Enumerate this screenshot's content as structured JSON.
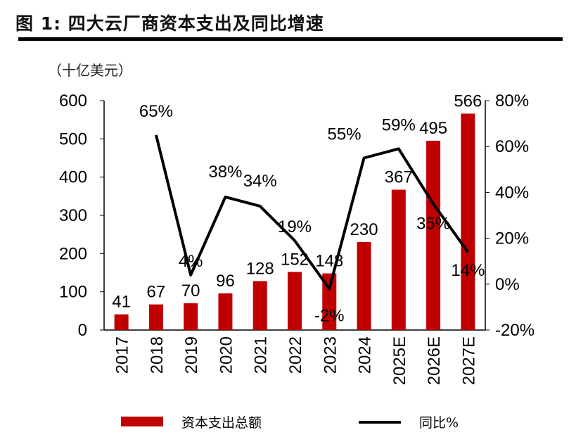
{
  "title": "图 1: 四大云厂商资本支出及同比增速",
  "chart_data": {
    "type": "bar+line",
    "title": "图 1: 四大云厂商资本支出及同比增速",
    "ylabel": "（十亿美元）",
    "categories": [
      "2017",
      "2018",
      "2019",
      "2020",
      "2021",
      "2022",
      "2023",
      "2024",
      "2025E",
      "2026E",
      "2027E"
    ],
    "series": [
      {
        "name": "资本支出总额",
        "type": "bar",
        "axis": "left",
        "color": "#C00000",
        "values": [
          41,
          67,
          70,
          96,
          128,
          152,
          148,
          230,
          367,
          495,
          566
        ]
      },
      {
        "name": "同比%",
        "type": "line",
        "axis": "right",
        "color": "#000000",
        "values": [
          null,
          65,
          4,
          38,
          34,
          19,
          -2,
          55,
          59,
          35,
          14
        ],
        "labels": [
          "",
          "65%",
          "4%",
          "38%",
          "34%",
          "19%",
          "-2%",
          "55%",
          "59%",
          "35%",
          "14%"
        ]
      }
    ],
    "left_axis": {
      "ylim": [
        0,
        600
      ],
      "ticks": [
        "0",
        "100",
        "200",
        "300",
        "400",
        "500",
        "600"
      ]
    },
    "right_axis": {
      "ylim": [
        -20,
        80
      ],
      "ticks": [
        "-20%",
        "0%",
        "20%",
        "40%",
        "60%",
        "80%"
      ]
    },
    "grid": false,
    "legend": {
      "placement": "bottom",
      "items": [
        "资本支出总额",
        "同比%"
      ]
    }
  }
}
